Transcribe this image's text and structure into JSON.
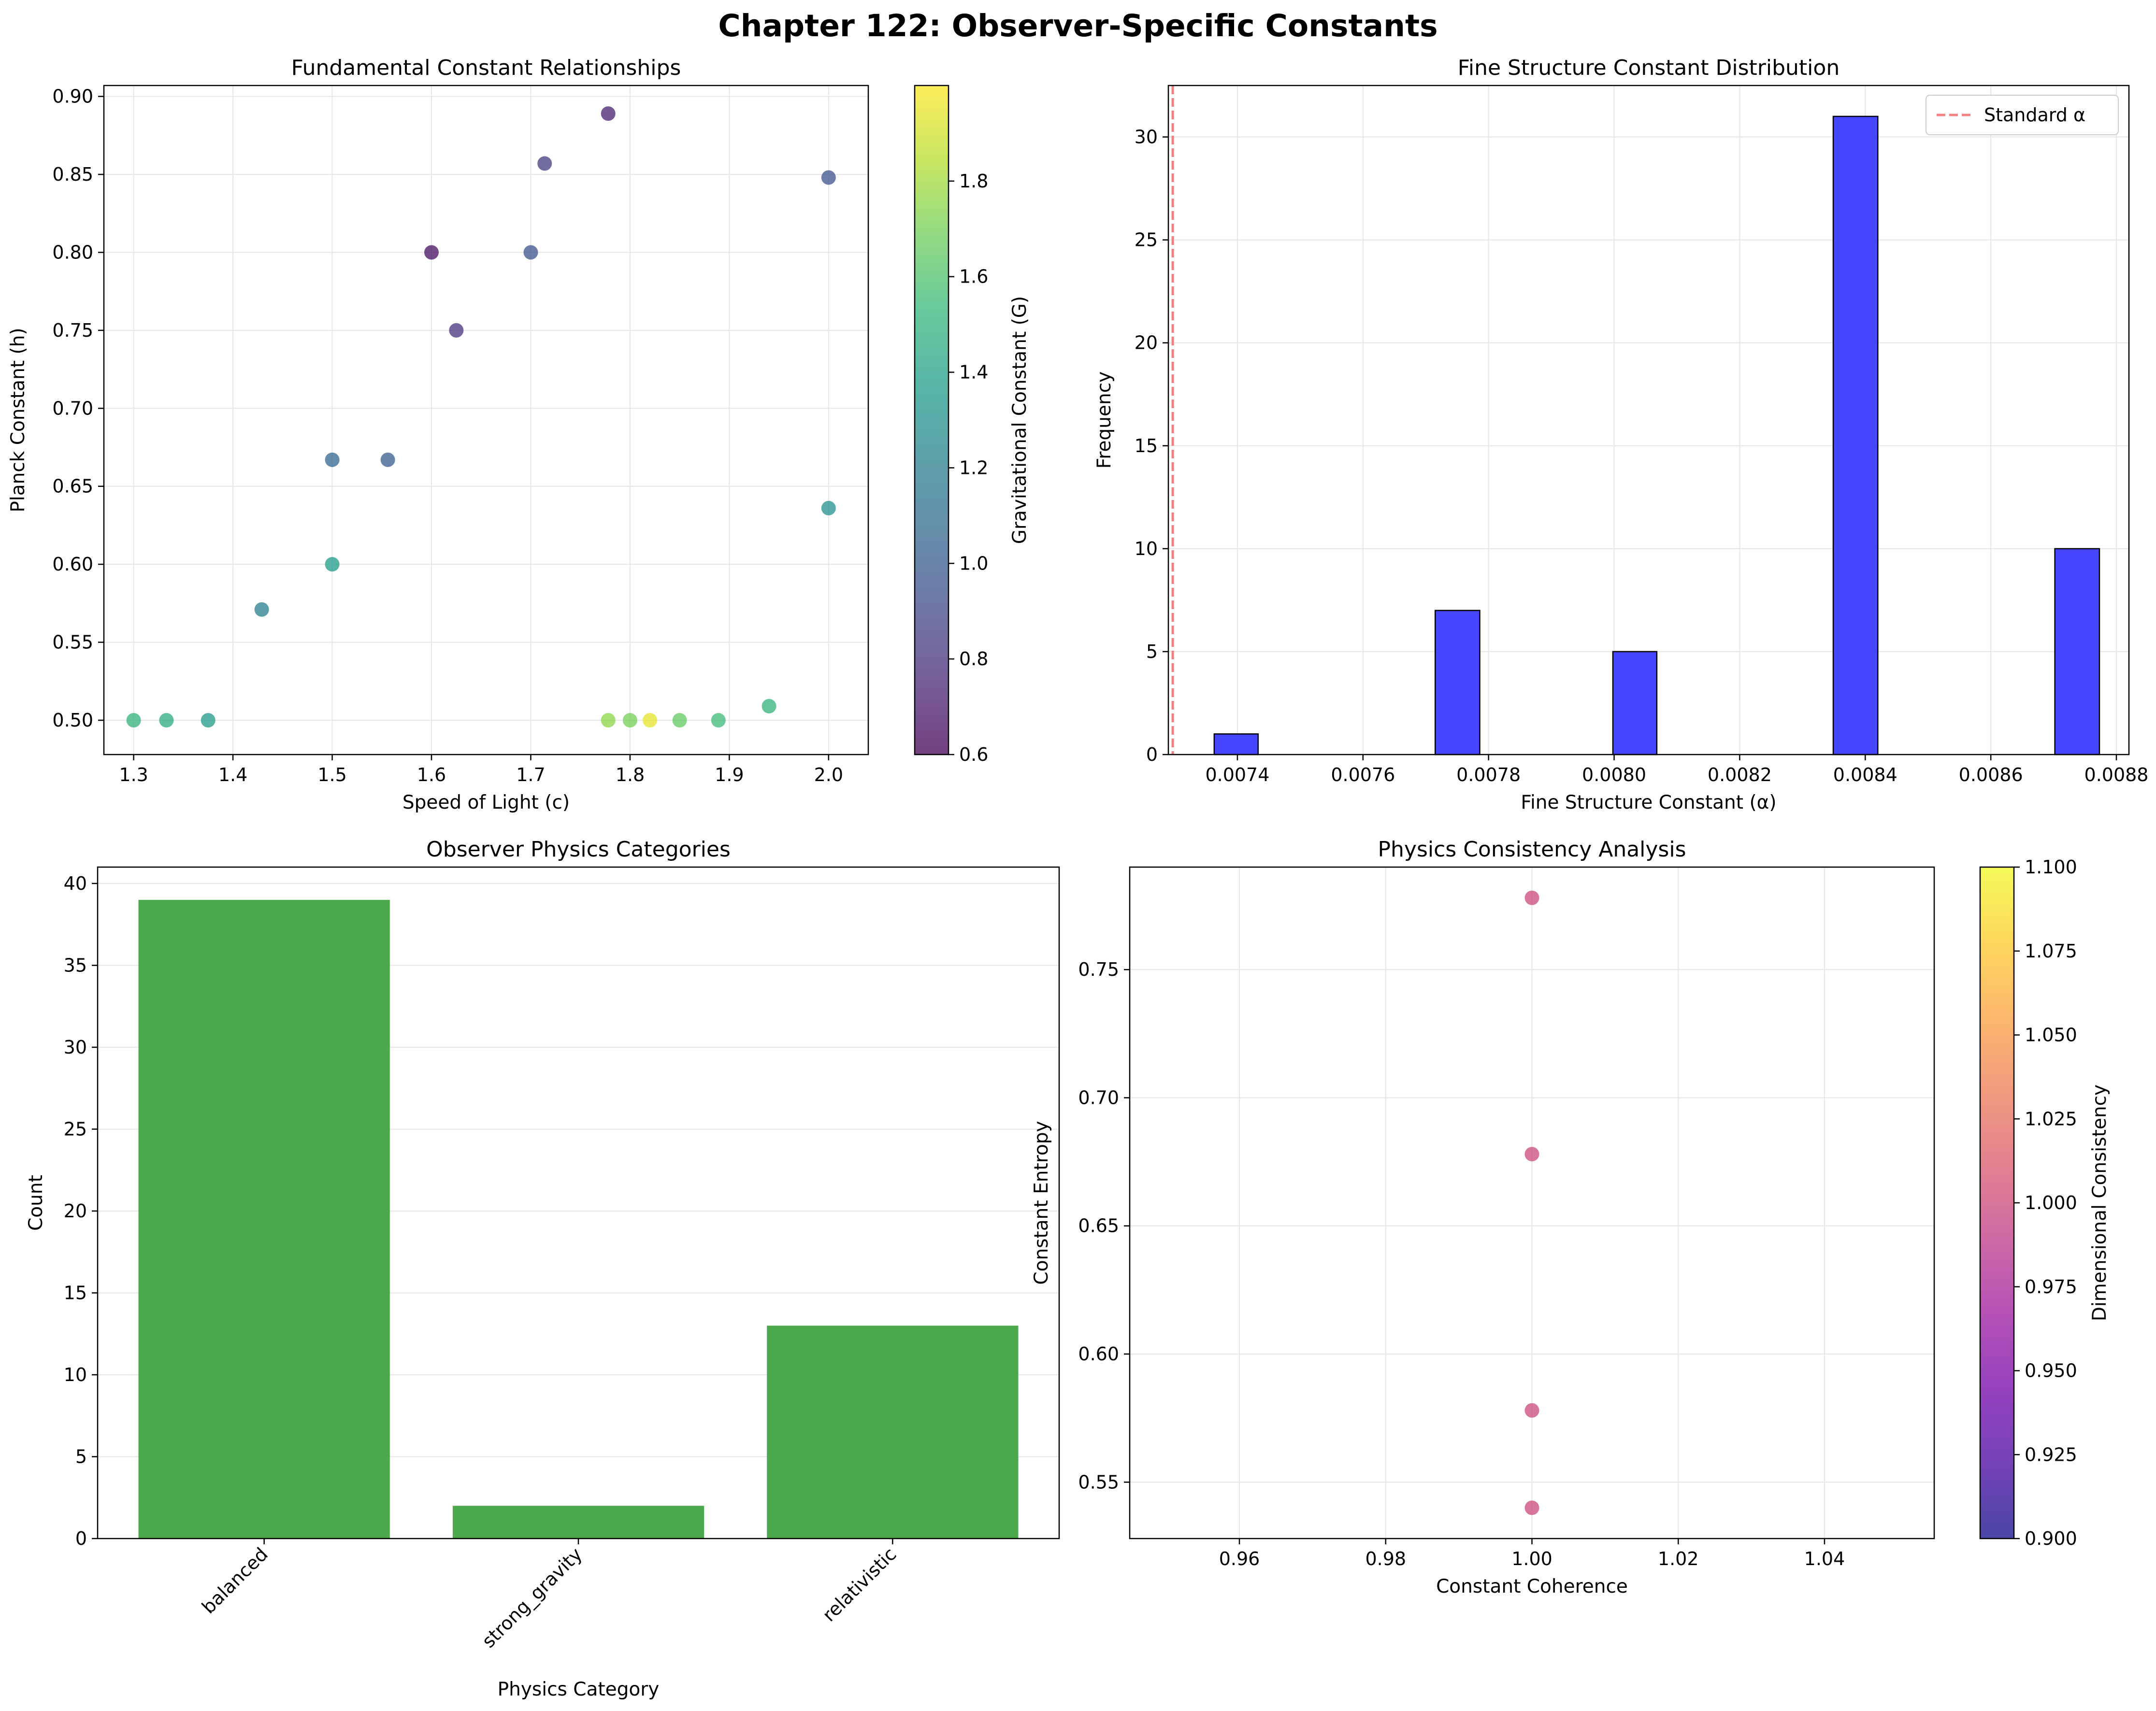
{
  "figure": {
    "title": "Chapter 122: Observer-Specific Constants"
  },
  "colors": {
    "hist_bar": "#4646ff",
    "category_bar": "#4ca84c",
    "standard_line": "#f47f7f",
    "grid": "#e6e6e6"
  },
  "chart_data": [
    {
      "type": "scatter",
      "title": "Fundamental Constant Relationships",
      "xlabel": "Speed of Light (c)",
      "ylabel": "Planck Constant (h)",
      "xlim": [
        1.27,
        2.04
      ],
      "ylim": [
        0.478,
        0.907
      ],
      "xticks": [
        1.3,
        1.4,
        1.5,
        1.6,
        1.7,
        1.8,
        1.9,
        2.0
      ],
      "yticks": [
        0.5,
        0.55,
        0.6,
        0.65,
        0.7,
        0.75,
        0.8,
        0.85,
        0.9
      ],
      "xtick_labels": [
        "1.3",
        "1.4",
        "1.5",
        "1.6",
        "1.7",
        "1.8",
        "1.9",
        "2.0"
      ],
      "ytick_labels": [
        "0.50",
        "0.55",
        "0.60",
        "0.65",
        "0.70",
        "0.75",
        "0.80",
        "0.85",
        "0.90"
      ],
      "grid": true,
      "colorbar": {
        "label": "Gravitational Constant (G)",
        "colormap": "viridis",
        "range": [
          0.6,
          2.0
        ],
        "ticks": [
          0.6,
          0.8,
          1.0,
          1.2,
          1.4,
          1.6,
          1.8
        ],
        "tick_labels": [
          "0.6",
          "0.8",
          "1.0",
          "1.2",
          "1.4",
          "1.6",
          "1.8"
        ]
      },
      "points": [
        {
          "x": 1.3,
          "y": 0.5,
          "c": 1.5
        },
        {
          "x": 1.333,
          "y": 0.5,
          "c": 1.45
        },
        {
          "x": 1.375,
          "y": 0.5,
          "c": 1.35
        },
        {
          "x": 1.429,
          "y": 0.571,
          "c": 1.2
        },
        {
          "x": 1.5,
          "y": 0.6,
          "c": 1.35
        },
        {
          "x": 1.5,
          "y": 0.667,
          "c": 1.05
        },
        {
          "x": 1.556,
          "y": 0.667,
          "c": 1.0
        },
        {
          "x": 1.6,
          "y": 0.8,
          "c": 0.65
        },
        {
          "x": 1.625,
          "y": 0.75,
          "c": 0.8
        },
        {
          "x": 1.7,
          "y": 0.8,
          "c": 0.95
        },
        {
          "x": 1.714,
          "y": 0.857,
          "c": 0.85
        },
        {
          "x": 1.778,
          "y": 0.889,
          "c": 0.72
        },
        {
          "x": 1.778,
          "y": 0.5,
          "c": 1.75
        },
        {
          "x": 1.8,
          "y": 0.5,
          "c": 1.7
        },
        {
          "x": 1.82,
          "y": 0.5,
          "c": 1.95
        },
        {
          "x": 1.85,
          "y": 0.5,
          "c": 1.65
        },
        {
          "x": 1.889,
          "y": 0.5,
          "c": 1.55
        },
        {
          "x": 1.94,
          "y": 0.509,
          "c": 1.5
        },
        {
          "x": 2.0,
          "y": 0.636,
          "c": 1.3
        },
        {
          "x": 2.0,
          "y": 0.848,
          "c": 0.95
        }
      ]
    },
    {
      "type": "bar",
      "title": "Fine Structure Constant Distribution",
      "xlabel": "Fine Structure Constant (α)",
      "ylabel": "Frequency",
      "xlim": [
        0.00729,
        0.00882
      ],
      "ylim": [
        0,
        32.5
      ],
      "xticks": [
        0.0074,
        0.0076,
        0.0078,
        0.008,
        0.0082,
        0.0084,
        0.0086,
        0.0088
      ],
      "yticks": [
        0,
        5,
        10,
        15,
        20,
        25,
        30
      ],
      "xtick_labels": [
        "0.0074",
        "0.0076",
        "0.0078",
        "0.0080",
        "0.0082",
        "0.0084",
        "0.0086",
        "0.0088"
      ],
      "ytick_labels": [
        "0",
        "5",
        "10",
        "15",
        "20",
        "25",
        "30"
      ],
      "grid": true,
      "bins": [
        {
          "left": 0.007363,
          "right": 0.007433,
          "count": 1
        },
        {
          "left": 0.007715,
          "right": 0.007786,
          "count": 7
        },
        {
          "left": 0.007998,
          "right": 0.008068,
          "count": 5
        },
        {
          "left": 0.008349,
          "right": 0.00842,
          "count": 31
        },
        {
          "left": 0.008702,
          "right": 0.008773,
          "count": 10
        }
      ],
      "reference_line": {
        "x": 0.007297,
        "label": "Standard α"
      },
      "legend": {
        "position": "top-right"
      }
    },
    {
      "type": "bar",
      "title": "Observer Physics Categories",
      "xlabel": "Physics Category",
      "ylabel": "Count",
      "categories": [
        "balanced",
        "strong_gravity",
        "relativistic"
      ],
      "values": [
        39,
        2,
        13
      ],
      "ylim": [
        0,
        41
      ],
      "yticks": [
        0,
        5,
        10,
        15,
        20,
        25,
        30,
        35,
        40
      ],
      "ytick_labels": [
        "0",
        "5",
        "10",
        "15",
        "20",
        "25",
        "30",
        "35",
        "40"
      ],
      "grid": true
    },
    {
      "type": "scatter",
      "title": "Physics Consistency Analysis",
      "xlabel": "Constant Coherence",
      "ylabel": "Constant Entropy",
      "xlim": [
        0.945,
        1.055
      ],
      "ylim": [
        0.528,
        0.79
      ],
      "xticks": [
        0.96,
        0.98,
        1.0,
        1.02,
        1.04
      ],
      "yticks": [
        0.55,
        0.6,
        0.65,
        0.7,
        0.75
      ],
      "xtick_labels": [
        "0.96",
        "0.98",
        "1.00",
        "1.02",
        "1.04"
      ],
      "ytick_labels": [
        "0.55",
        "0.60",
        "0.65",
        "0.70",
        "0.75"
      ],
      "grid": true,
      "colorbar": {
        "label": "Dimensional Consistency",
        "colormap": "plasma",
        "range": [
          0.9,
          1.1
        ],
        "ticks": [
          0.9,
          0.925,
          0.95,
          0.975,
          1.0,
          1.025,
          1.05,
          1.075,
          1.1
        ],
        "tick_labels": [
          "0.900",
          "0.925",
          "0.950",
          "0.975",
          "1.000",
          "1.025",
          "1.050",
          "1.075",
          "1.100"
        ]
      },
      "points": [
        {
          "x": 1.0,
          "y": 0.778,
          "c": 1.0
        },
        {
          "x": 1.0,
          "y": 0.678,
          "c": 1.0
        },
        {
          "x": 1.0,
          "y": 0.578,
          "c": 1.0
        },
        {
          "x": 1.0,
          "y": 0.54,
          "c": 1.0
        }
      ]
    }
  ]
}
